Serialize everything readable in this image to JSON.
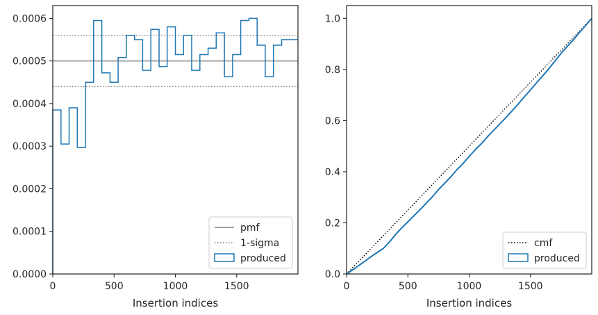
{
  "chart_data": [
    {
      "type": "step",
      "xlabel": "Insertion indices",
      "ylabel": "",
      "xlim": [
        0,
        2000
      ],
      "ylim": [
        0,
        0.00063
      ],
      "xticks": [
        0,
        500,
        1000,
        1500
      ],
      "yticks": [
        0,
        0.0001,
        0.0002,
        0.0003,
        0.0004,
        0.0005,
        0.0006
      ],
      "ytick_labels": [
        "0.0000",
        "0.0001",
        "0.0002",
        "0.0003",
        "0.0004",
        "0.0005",
        "0.0006"
      ],
      "xtick_labels": [
        "0",
        "500",
        "1000",
        "1500"
      ],
      "bin_edges": [
        0,
        67,
        133,
        200,
        267,
        333,
        400,
        467,
        533,
        600,
        667,
        733,
        800,
        867,
        933,
        1000,
        1067,
        1133,
        1200,
        1267,
        1333,
        1400,
        1467,
        1533,
        1600,
        1667,
        1733,
        1800,
        1867,
        1933,
        2000
      ],
      "pmf": 0.0005,
      "sigma_upper": 0.00056,
      "sigma_lower": 0.00044,
      "series": [
        {
          "name": "produced",
          "color": "#1f77b4",
          "values": [
            0.000385,
            0.000305,
            0.00039,
            0.000297,
            0.00045,
            0.000595,
            0.000472,
            0.00045,
            0.000508,
            0.00056,
            0.00055,
            0.000478,
            0.000574,
            0.000487,
            0.00058,
            0.000515,
            0.00056,
            0.000478,
            0.000515,
            0.00053,
            0.000566,
            0.000463,
            0.000515,
            0.000595,
            0.0006,
            0.000537,
            0.000463,
            0.000537,
            0.00055,
            0.00055
          ]
        }
      ],
      "legend": {
        "position": "lower-right",
        "entries": [
          {
            "label": "pmf",
            "style": "solid",
            "color": "#808080"
          },
          {
            "label": "1-sigma",
            "style": "dotted",
            "color": "#808080"
          },
          {
            "label": "produced",
            "style": "patch",
            "color": "#1f77b4"
          }
        ]
      }
    },
    {
      "type": "line",
      "xlabel": "Insertion indices",
      "ylabel": "",
      "xlim": [
        0,
        2000
      ],
      "ylim": [
        0,
        1.05
      ],
      "xticks": [
        0,
        500,
        1000,
        1500
      ],
      "yticks": [
        0,
        0.2,
        0.4,
        0.6,
        0.8,
        1.0
      ],
      "ytick_labels": [
        "0.0",
        "0.2",
        "0.4",
        "0.6",
        "0.8",
        "1.0"
      ],
      "xtick_labels": [
        "0",
        "500",
        "1000",
        "1500"
      ],
      "cmf": {
        "x": [
          0,
          2000
        ],
        "y": [
          0,
          1.0
        ],
        "color": "#000000"
      },
      "series": [
        {
          "name": "produced",
          "color": "#1f77b4",
          "x": [
            0,
            50,
            100,
            150,
            200,
            250,
            300,
            350,
            400,
            450,
            500,
            550,
            600,
            650,
            700,
            750,
            800,
            850,
            900,
            950,
            1000,
            1050,
            1100,
            1150,
            1200,
            1250,
            1300,
            1350,
            1400,
            1450,
            1500,
            1550,
            1600,
            1650,
            1700,
            1750,
            1800,
            1850,
            1900,
            1950,
            2000
          ],
          "y": [
            0,
            0.016,
            0.033,
            0.05,
            0.068,
            0.084,
            0.1,
            0.125,
            0.155,
            0.18,
            0.204,
            0.228,
            0.252,
            0.277,
            0.302,
            0.33,
            0.355,
            0.38,
            0.408,
            0.432,
            0.46,
            0.486,
            0.51,
            0.537,
            0.562,
            0.587,
            0.612,
            0.638,
            0.665,
            0.693,
            0.72,
            0.748,
            0.775,
            0.803,
            0.833,
            0.863,
            0.89,
            0.916,
            0.945,
            0.972,
            1.0
          ]
        }
      ],
      "legend": {
        "position": "lower-right",
        "entries": [
          {
            "label": "cmf",
            "style": "dotted",
            "color": "#000000"
          },
          {
            "label": "produced",
            "style": "patch",
            "color": "#1f77b4"
          }
        ]
      }
    }
  ]
}
